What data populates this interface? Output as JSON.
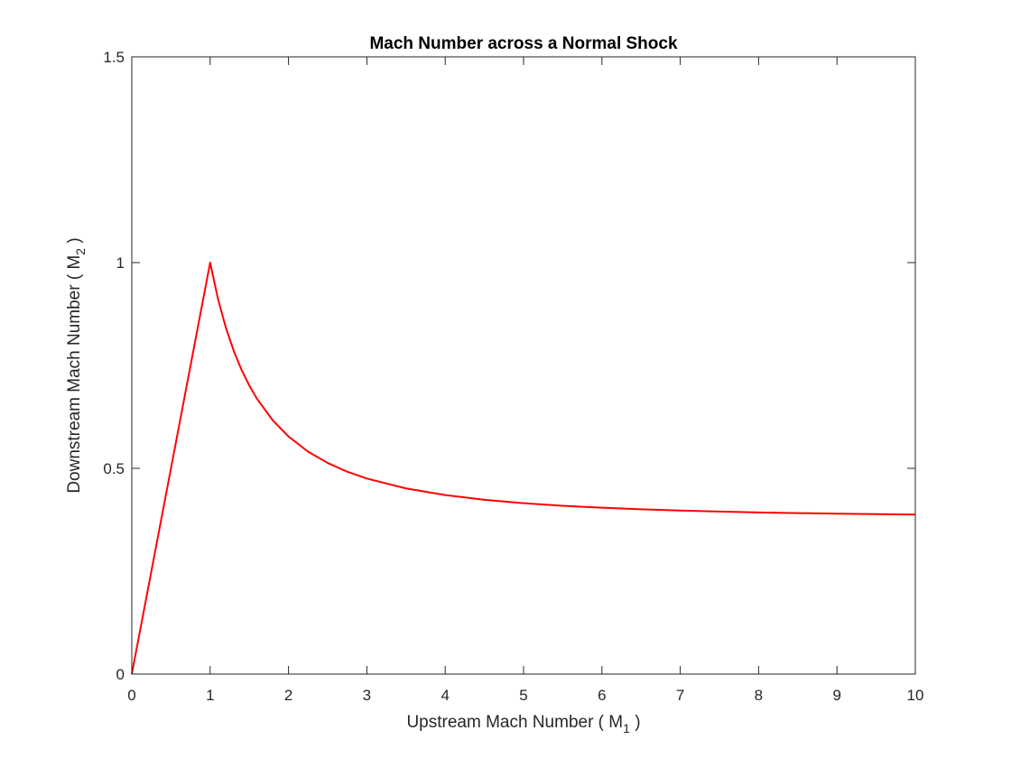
{
  "chart_data": {
    "type": "line",
    "title": "Mach Number across a Normal Shock",
    "xlabel": {
      "prefix": "Upstream Mach Number ( M",
      "subscript": "1",
      "suffix": " )"
    },
    "ylabel": {
      "prefix": "Downstream Mach Number ( M",
      "subscript": "2",
      "suffix": " )"
    },
    "xlim": [
      0,
      10
    ],
    "ylim": [
      0,
      1.5
    ],
    "xticks": [
      0,
      1,
      2,
      3,
      4,
      5,
      6,
      7,
      8,
      9,
      10
    ],
    "xtick_labels": [
      "0",
      "1",
      "2",
      "3",
      "4",
      "5",
      "6",
      "7",
      "8",
      "9",
      "10"
    ],
    "yticks": [
      0,
      0.5,
      1,
      1.5
    ],
    "ytick_labels": [
      "0",
      "0.5",
      "1",
      "1.5"
    ],
    "grid": false,
    "series": [
      {
        "color": "#ff0000",
        "x": [
          0,
          1,
          1.1,
          1.2,
          1.3,
          1.4,
          1.5,
          1.6,
          1.8,
          2.0,
          2.25,
          2.5,
          2.75,
          3.0,
          3.5,
          4.0,
          4.5,
          5.0,
          5.5,
          6.0,
          6.5,
          7.0,
          7.5,
          8.0,
          8.5,
          9.0,
          9.5,
          10.0
        ],
        "y": [
          0,
          1.0,
          0.9118,
          0.8422,
          0.786,
          0.7397,
          0.7011,
          0.6684,
          0.6165,
          0.5774,
          0.5406,
          0.513,
          0.4918,
          0.4752,
          0.4512,
          0.435,
          0.4236,
          0.4152,
          0.409,
          0.4042,
          0.4004,
          0.3974,
          0.3949,
          0.3929,
          0.3912,
          0.3898,
          0.3886,
          0.3876
        ]
      }
    ]
  }
}
